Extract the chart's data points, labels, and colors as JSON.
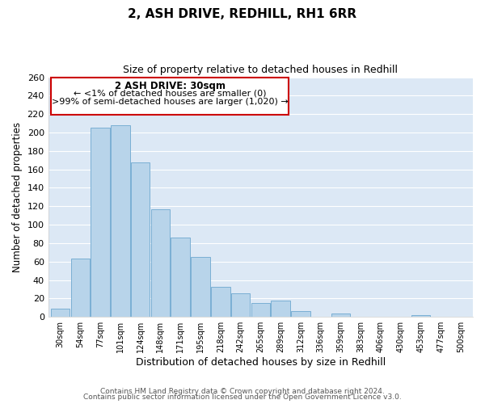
{
  "title": "2, ASH DRIVE, REDHILL, RH1 6RR",
  "subtitle": "Size of property relative to detached houses in Redhill",
  "xlabel": "Distribution of detached houses by size in Redhill",
  "ylabel": "Number of detached properties",
  "bar_color": "#b8d4ea",
  "bar_edge_color": "#7aafd4",
  "plot_bg_color": "#dce8f5",
  "figure_bg_color": "#ffffff",
  "grid_color": "#ffffff",
  "bin_labels": [
    "30sqm",
    "54sqm",
    "77sqm",
    "101sqm",
    "124sqm",
    "148sqm",
    "171sqm",
    "195sqm",
    "218sqm",
    "242sqm",
    "265sqm",
    "289sqm",
    "312sqm",
    "336sqm",
    "359sqm",
    "383sqm",
    "406sqm",
    "430sqm",
    "453sqm",
    "477sqm",
    "500sqm"
  ],
  "bar_heights": [
    9,
    63,
    205,
    208,
    168,
    117,
    86,
    65,
    33,
    26,
    15,
    18,
    6,
    0,
    4,
    0,
    0,
    0,
    2,
    0,
    0
  ],
  "ylim": [
    0,
    260
  ],
  "yticks": [
    0,
    20,
    40,
    60,
    80,
    100,
    120,
    140,
    160,
    180,
    200,
    220,
    240,
    260
  ],
  "annotation_box_text_line1": "2 ASH DRIVE: 30sqm",
  "annotation_box_text_line2": "← <1% of detached houses are smaller (0)",
  "annotation_box_text_line3": ">99% of semi-detached houses are larger (1,020) →",
  "annotation_box_edge_color": "#cc0000",
  "footnote1": "Contains HM Land Registry data © Crown copyright and database right 2024.",
  "footnote2": "Contains public sector information licensed under the Open Government Licence v3.0."
}
